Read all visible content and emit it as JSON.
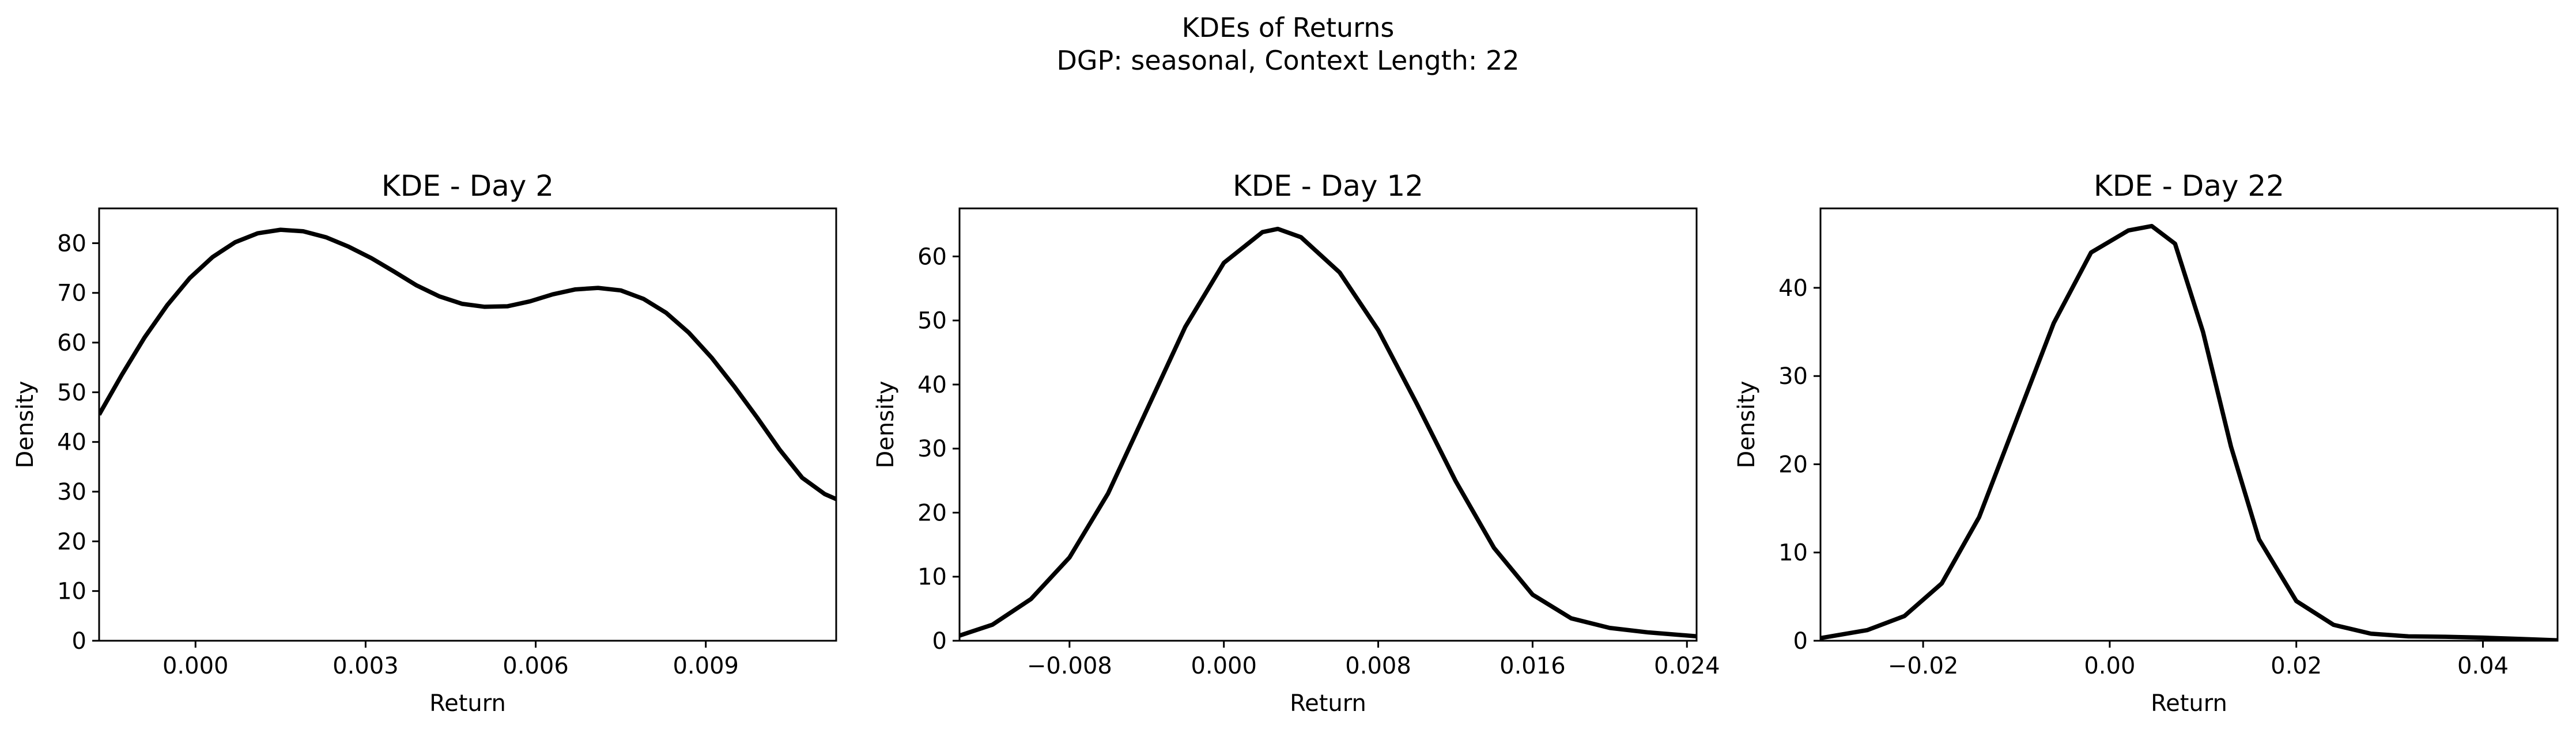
{
  "figure": {
    "suptitle_line1": "KDEs of Returns",
    "suptitle_line2": "DGP: seasonal, Context Length: 22"
  },
  "colors": {
    "line": "#000000",
    "axes": "#000000",
    "background": "#ffffff"
  },
  "chart_data": [
    {
      "type": "line",
      "title": "KDE - Day 2",
      "xlabel": "Return",
      "ylabel": "Density",
      "xlim": [
        -0.0017,
        0.0113
      ],
      "ylim": [
        0,
        87
      ],
      "xticks": [
        0.0,
        0.003,
        0.006,
        0.009
      ],
      "xtick_labels": [
        "0.000",
        "0.003",
        "0.006",
        "0.009"
      ],
      "yticks": [
        0,
        10,
        20,
        30,
        40,
        50,
        60,
        70,
        80
      ],
      "ytick_labels": [
        "0",
        "10",
        "20",
        "30",
        "40",
        "50",
        "60",
        "70",
        "80"
      ],
      "grid": false,
      "series": [
        {
          "x": [
            -0.0017,
            -0.0013,
            -0.0009,
            -0.0005,
            -0.0001,
            0.0003,
            0.0007,
            0.0011,
            0.0015,
            0.0019,
            0.0023,
            0.0027,
            0.0031,
            0.0035,
            0.0039,
            0.0043,
            0.0047,
            0.0051,
            0.0055,
            0.0059,
            0.0063,
            0.0067,
            0.0071,
            0.0075,
            0.0079,
            0.0083,
            0.0087,
            0.0091,
            0.0095,
            0.0099,
            0.0103,
            0.0107,
            0.0111,
            0.0113
          ],
          "y": [
            45.5,
            53.5,
            61.0,
            67.5,
            73.0,
            77.2,
            80.2,
            82.0,
            82.7,
            82.4,
            81.2,
            79.3,
            77.0,
            74.3,
            71.5,
            69.3,
            67.8,
            67.2,
            67.3,
            68.3,
            69.7,
            70.7,
            71.0,
            70.5,
            68.8,
            66.0,
            62.0,
            57.0,
            51.2,
            45.0,
            38.5,
            32.8,
            29.5,
            28.5
          ]
        }
      ]
    },
    {
      "type": "line",
      "title": "KDE - Day 12",
      "xlabel": "Return",
      "ylabel": "Density",
      "xlim": [
        -0.0137,
        0.0245
      ],
      "ylim": [
        0,
        67.5
      ],
      "xticks": [
        -0.008,
        0.0,
        0.008,
        0.016,
        0.024
      ],
      "xtick_labels": [
        "−0.008",
        "0.000",
        "0.008",
        "0.016",
        "0.024"
      ],
      "yticks": [
        0,
        10,
        20,
        30,
        40,
        50,
        60
      ],
      "ytick_labels": [
        "0",
        "10",
        "20",
        "30",
        "40",
        "50",
        "60"
      ],
      "grid": false,
      "series": [
        {
          "x": [
            -0.0137,
            -0.012,
            -0.01,
            -0.008,
            -0.006,
            -0.004,
            -0.002,
            0.0,
            0.002,
            0.0028,
            0.004,
            0.006,
            0.008,
            0.01,
            0.012,
            0.014,
            0.016,
            0.018,
            0.02,
            0.022,
            0.0245
          ],
          "y": [
            0.8,
            2.5,
            6.5,
            13.0,
            23.0,
            36.0,
            49.0,
            59.0,
            63.8,
            64.3,
            63.0,
            57.5,
            48.5,
            37.0,
            25.0,
            14.5,
            7.2,
            3.5,
            2.0,
            1.3,
            0.7
          ]
        }
      ]
    },
    {
      "type": "line",
      "title": "KDE - Day 22",
      "xlabel": "Return",
      "ylabel": "Density",
      "xlim": [
        -0.031,
        0.048
      ],
      "ylim": [
        0,
        49
      ],
      "xticks": [
        -0.02,
        0.0,
        0.02,
        0.04
      ],
      "xtick_labels": [
        "−0.02",
        "0.00",
        "0.02",
        "0.04"
      ],
      "yticks": [
        0,
        10,
        20,
        30,
        40
      ],
      "ytick_labels": [
        "0",
        "10",
        "20",
        "30",
        "40"
      ],
      "grid": false,
      "series": [
        {
          "x": [
            -0.031,
            -0.026,
            -0.022,
            -0.018,
            -0.014,
            -0.01,
            -0.006,
            -0.002,
            0.002,
            0.0045,
            0.007,
            0.01,
            0.013,
            0.016,
            0.02,
            0.024,
            0.028,
            0.032,
            0.036,
            0.04,
            0.044,
            0.048
          ],
          "y": [
            0.3,
            1.2,
            2.8,
            6.5,
            14.0,
            25.0,
            36.0,
            44.0,
            46.5,
            47.0,
            45.0,
            35.0,
            22.0,
            11.5,
            4.5,
            1.8,
            0.8,
            0.5,
            0.45,
            0.35,
            0.2,
            0.05
          ]
        }
      ]
    }
  ]
}
